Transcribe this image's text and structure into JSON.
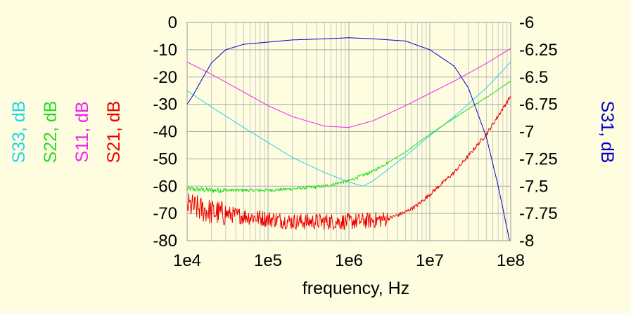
{
  "chart_data": {
    "type": "line",
    "xlabel": "frequency, Hz",
    "x_scale": "log",
    "xlim": [
      10000,
      100000000
    ],
    "x_ticks": [
      10000,
      100000,
      1000000,
      10000000,
      100000000
    ],
    "x_tick_labels": [
      "1e4",
      "1e5",
      "1e6",
      "1e7",
      "1e8"
    ],
    "ylim_left": [
      -80,
      0
    ],
    "y_left_ticks": [
      0,
      -10,
      -20,
      -30,
      -40,
      -50,
      -60,
      -70,
      -80
    ],
    "y_left_tick_labels": [
      "0",
      "-10",
      "-20",
      "-30",
      "-40",
      "-50",
      "-60",
      "-70",
      "-80"
    ],
    "ylim_right": [
      -8,
      -6
    ],
    "y_right_ticks": [
      -6,
      -6.25,
      -6.5,
      -6.75,
      -7,
      -7.25,
      -7.5,
      -7.75,
      -8
    ],
    "y_right_tick_labels": [
      "-6",
      "-6.25",
      "-6.5",
      "-6.75",
      "-7",
      "-7.25",
      "-7.5",
      "-7.75",
      "-8"
    ],
    "left_axis_labels": [
      {
        "name": "S33, dB",
        "color": "#22d3ee"
      },
      {
        "name": "S22, dB",
        "color": "#22dd22"
      },
      {
        "name": "S11, dB",
        "color": "#ee22ee"
      },
      {
        "name": "S21, dB",
        "color": "#ee0000"
      }
    ],
    "right_axis_label": {
      "name": "S31, dB",
      "color": "#0000cc"
    },
    "grid": true,
    "series": [
      {
        "name": "S33, dB",
        "axis": "left",
        "color": "#22d3ee",
        "noise": 0,
        "x": [
          10000,
          20000,
          50000,
          100000,
          200000,
          500000,
          1000000,
          1500000,
          2000000,
          5000000,
          10000000,
          20000000,
          50000000,
          100000000
        ],
        "y": [
          -25,
          -31,
          -38.5,
          -44,
          -49.5,
          -55,
          -58.5,
          -60,
          -58,
          -49,
          -41.5,
          -34.5,
          -24,
          -14.5
        ]
      },
      {
        "name": "S22, dB",
        "axis": "left",
        "color": "#22dd22",
        "noise": 0.6,
        "x": [
          10000,
          20000,
          50000,
          100000,
          200000,
          500000,
          1000000,
          2000000,
          5000000,
          10000000,
          20000000,
          50000000,
          100000000
        ],
        "y": [
          -61,
          -61.5,
          -61.5,
          -61.5,
          -61,
          -60,
          -58,
          -54.5,
          -47.5,
          -41,
          -35,
          -27.5,
          -21.5
        ]
      },
      {
        "name": "S11, dB",
        "axis": "left",
        "color": "#ee22ee",
        "noise": 0,
        "x": [
          10000,
          20000,
          50000,
          100000,
          200000,
          500000,
          1000000,
          2000000,
          5000000,
          10000000,
          20000000,
          50000000,
          100000000
        ],
        "y": [
          -14.5,
          -19,
          -25.5,
          -30.5,
          -34.5,
          -38,
          -38.5,
          -36,
          -30.5,
          -26,
          -21.5,
          -15,
          -9.5
        ]
      },
      {
        "name": "S21, dB",
        "axis": "left",
        "color": "#ee0000",
        "noise": 3,
        "x": [
          10000,
          15000,
          20000,
          50000,
          100000,
          200000,
          500000,
          1000000,
          2000000,
          3000000,
          5000000,
          7000000,
          10000000,
          20000000,
          50000000,
          100000000
        ],
        "y": [
          -67,
          -68.5,
          -69.5,
          -71,
          -72,
          -73,
          -73,
          -73,
          -72.5,
          -72,
          -69.5,
          -67,
          -63,
          -55,
          -41,
          -27
        ]
      },
      {
        "name": "S31, dB",
        "axis": "right",
        "color": "#0000cc",
        "noise": 0,
        "x": [
          10000,
          12000,
          15000,
          20000,
          30000,
          50000,
          100000,
          200000,
          500000,
          1000000,
          2000000,
          5000000,
          10000000,
          20000000,
          30000000,
          50000000,
          70000000,
          100000000
        ],
        "y": [
          -6.75,
          -6.66,
          -6.53,
          -6.37,
          -6.25,
          -6.2,
          -6.18,
          -6.16,
          -6.15,
          -6.14,
          -6.15,
          -6.17,
          -6.25,
          -6.4,
          -6.6,
          -7.05,
          -7.5,
          -8.05
        ]
      }
    ]
  }
}
